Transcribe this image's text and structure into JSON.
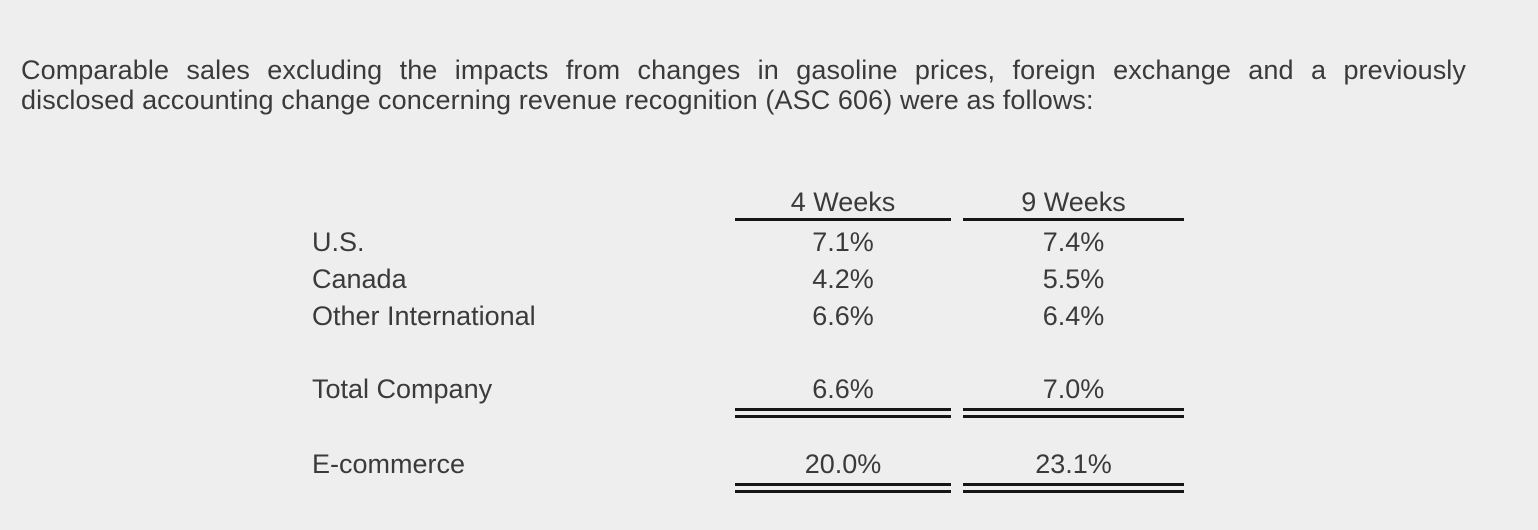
{
  "page": {
    "background_color": "#eeeeee",
    "text_color": "#3a3a3a",
    "rule_color": "#161616"
  },
  "intro": {
    "full_text": "Comparable sales excluding the impacts from changes in gasoline prices, foreign exchange and a previously disclosed accounting change concerning revenue recognition (ASC 606) were as follows:",
    "line1": "Comparable sales excluding the impacts from changes in gasoline prices, foreign exchange and a previously",
    "line2": "disclosed accounting change concerning revenue recognition (ASC 606) were as follows:"
  },
  "table": {
    "column_headers": [
      "4 Weeks",
      "9 Weeks"
    ],
    "rows": [
      {
        "label": "U.S.",
        "week4": "7.1%",
        "week9": "7.4%",
        "rule": "none"
      },
      {
        "label": "Canada",
        "week4": "4.2%",
        "week9": "5.5%",
        "rule": "none"
      },
      {
        "label": "Other International",
        "week4": "6.6%",
        "week9": "6.4%",
        "rule": "none"
      },
      {
        "label": "Total Company",
        "week4": "6.6%",
        "week9": "7.0%",
        "rule": "double"
      },
      {
        "label": "E-commerce",
        "week4": "20.0%",
        "week9": "23.1%",
        "rule": "double"
      }
    ]
  }
}
